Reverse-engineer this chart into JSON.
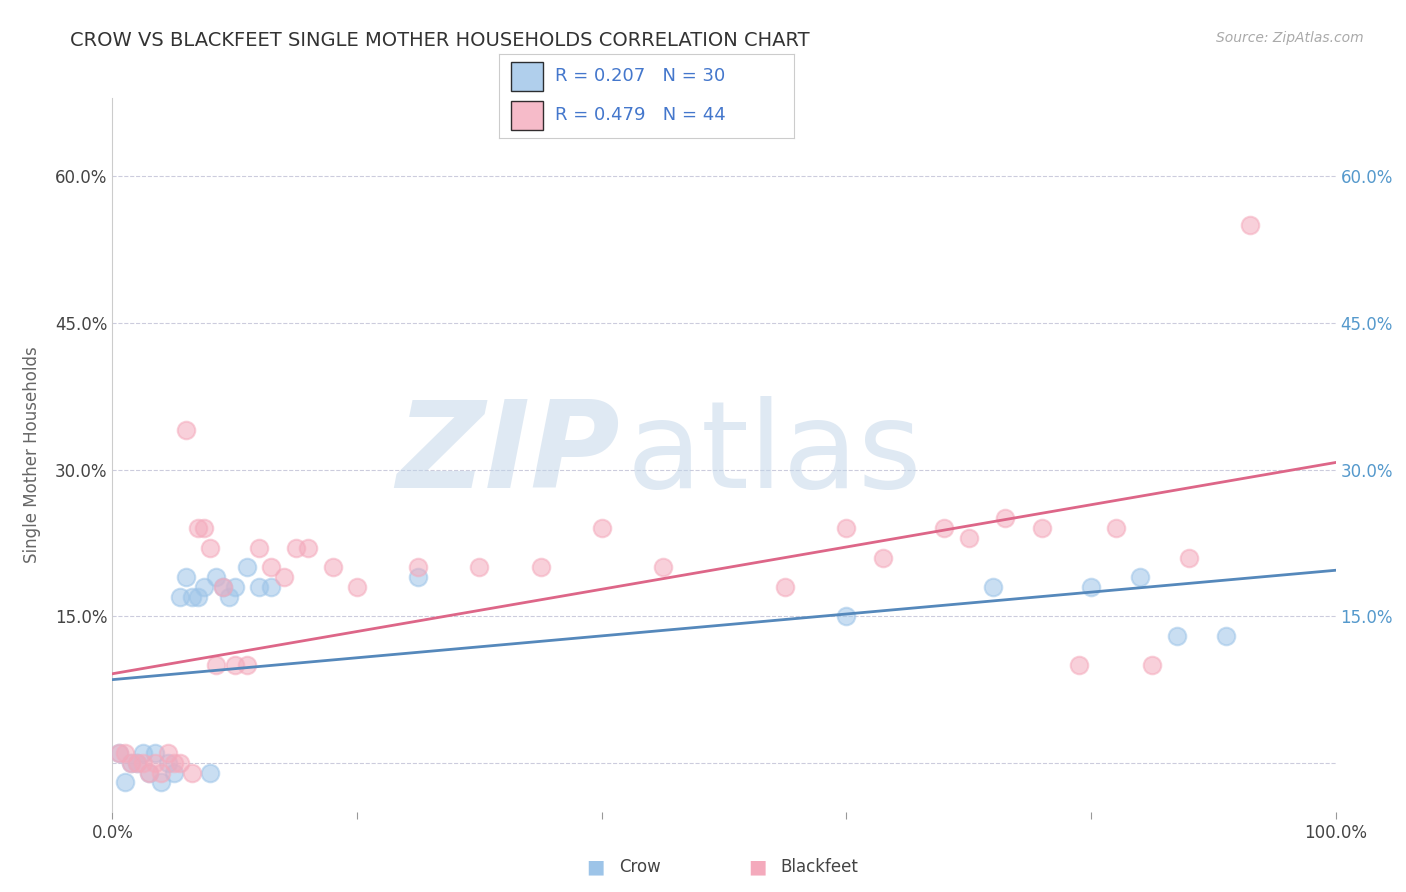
{
  "title": "CROW VS BLACKFEET SINGLE MOTHER HOUSEHOLDS CORRELATION CHART",
  "source_text": "Source: ZipAtlas.com",
  "ylabel": "Single Mother Households",
  "watermark_bold": "ZIP",
  "watermark_light": "atlas",
  "xlim": [
    0.0,
    1.0
  ],
  "ylim": [
    -0.05,
    0.68
  ],
  "ytick_vals": [
    0.0,
    0.15,
    0.3,
    0.45,
    0.6
  ],
  "ytick_labels_left": [
    "",
    "15.0%",
    "30.0%",
    "45.0%",
    "60.0%"
  ],
  "ytick_labels_right": [
    "",
    "15.0%",
    "30.0%",
    "45.0%",
    "60.0%"
  ],
  "xtick_vals": [
    0.0,
    0.2,
    0.4,
    0.6,
    0.8,
    1.0
  ],
  "xtick_labels": [
    "0.0%",
    "",
    "",
    "",
    "",
    "100.0%"
  ],
  "crow_R": 0.207,
  "crow_N": 30,
  "blackfeet_R": 0.479,
  "blackfeet_N": 44,
  "crow_color": "#9DC4E8",
  "blackfeet_color": "#F4AABC",
  "crow_line_color": "#5588BB",
  "blackfeet_line_color": "#DD6688",
  "background_color": "#FFFFFF",
  "grid_color": "#CCCCDD",
  "title_color": "#333333",
  "legend_text_color": "#4477CC",
  "right_tick_color": "#5599CC",
  "crow_x": [
    0.005,
    0.01,
    0.015,
    0.02,
    0.025,
    0.03,
    0.035,
    0.04,
    0.045,
    0.05,
    0.055,
    0.06,
    0.065,
    0.07,
    0.075,
    0.08,
    0.085,
    0.09,
    0.095,
    0.1,
    0.11,
    0.12,
    0.13,
    0.25,
    0.6,
    0.72,
    0.8,
    0.84,
    0.87,
    0.91
  ],
  "crow_y": [
    0.01,
    -0.02,
    0.0,
    0.0,
    0.01,
    -0.01,
    0.01,
    -0.02,
    0.0,
    -0.01,
    0.17,
    0.19,
    0.17,
    0.17,
    0.18,
    -0.01,
    0.19,
    0.18,
    0.17,
    0.18,
    0.2,
    0.18,
    0.18,
    0.19,
    0.15,
    0.18,
    0.18,
    0.19,
    0.13,
    0.13
  ],
  "blackfeet_x": [
    0.005,
    0.01,
    0.015,
    0.02,
    0.025,
    0.03,
    0.035,
    0.04,
    0.045,
    0.05,
    0.055,
    0.06,
    0.065,
    0.07,
    0.075,
    0.08,
    0.085,
    0.09,
    0.1,
    0.11,
    0.12,
    0.13,
    0.14,
    0.15,
    0.16,
    0.18,
    0.2,
    0.25,
    0.3,
    0.35,
    0.4,
    0.45,
    0.55,
    0.6,
    0.63,
    0.68,
    0.7,
    0.73,
    0.76,
    0.79,
    0.82,
    0.85,
    0.88,
    0.93
  ],
  "blackfeet_y": [
    0.01,
    0.01,
    0.0,
    0.0,
    0.0,
    -0.01,
    0.0,
    -0.01,
    0.01,
    0.0,
    0.0,
    0.34,
    -0.01,
    0.24,
    0.24,
    0.22,
    0.1,
    0.18,
    0.1,
    0.1,
    0.22,
    0.2,
    0.19,
    0.22,
    0.22,
    0.2,
    0.18,
    0.2,
    0.2,
    0.2,
    0.24,
    0.2,
    0.18,
    0.24,
    0.21,
    0.24,
    0.23,
    0.25,
    0.24,
    0.1,
    0.24,
    0.1,
    0.21,
    0.55
  ]
}
